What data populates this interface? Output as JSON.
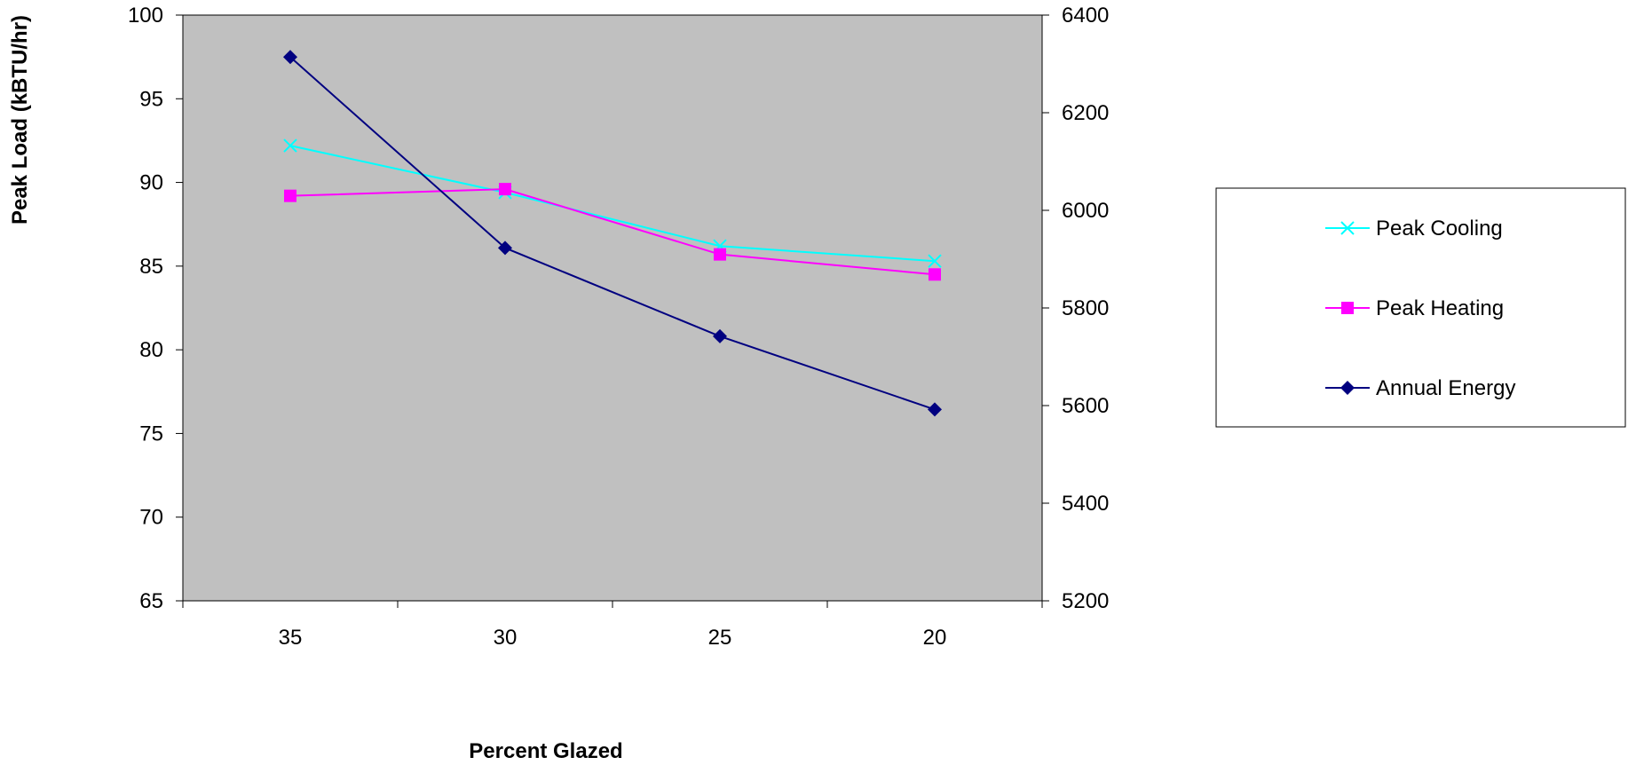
{
  "chart_data": {
    "type": "line",
    "title": "",
    "xlabel": "Percent Glazed",
    "ylabel": "Peak Load (kBTU/hr)",
    "y2label": "",
    "categories": [
      "35",
      "30",
      "25",
      "20"
    ],
    "ylim": [
      65,
      100
    ],
    "yticks": [
      65,
      70,
      75,
      80,
      85,
      90,
      95,
      100
    ],
    "y2lim": [
      5200,
      6400
    ],
    "y2ticks": [
      5200,
      5400,
      5600,
      5800,
      6000,
      6200,
      6400
    ],
    "grid": false,
    "plot_background": "#c0c0c0",
    "legend_position": "right",
    "series": [
      {
        "name": "Peak Cooling",
        "axis": "left",
        "color": "#00ffff",
        "marker": "x-icon",
        "values": [
          92.2,
          89.4,
          86.2,
          85.3
        ]
      },
      {
        "name": "Peak Heating",
        "axis": "left",
        "color": "#ff00ff",
        "marker": "square-icon",
        "values": [
          89.2,
          89.6,
          85.7,
          84.5
        ]
      },
      {
        "name": "Annual Energy",
        "axis": "right",
        "color": "#000080",
        "marker": "diamond-icon",
        "values": [
          6314,
          5923,
          5742,
          5592
        ]
      }
    ]
  }
}
